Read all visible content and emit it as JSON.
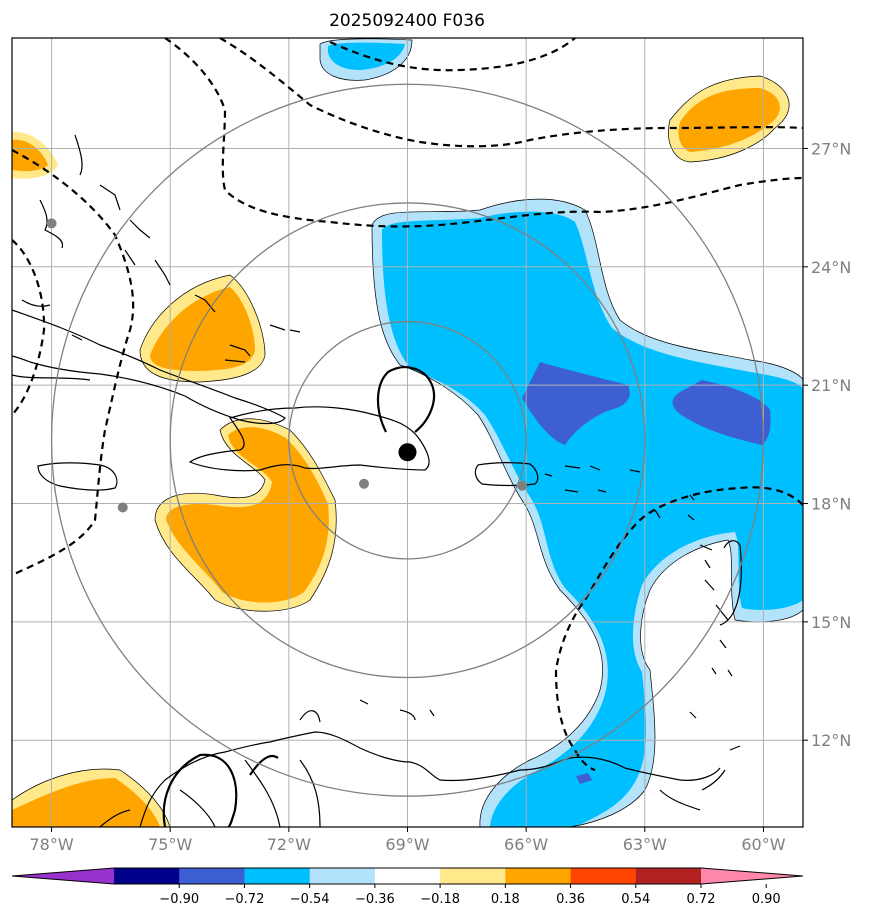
{
  "title": "2025092400 F036",
  "map": {
    "lon_range": [
      -79,
      -59
    ],
    "lat_range": [
      9.8,
      29.8
    ],
    "lon_ticks": [
      {
        "value": -78,
        "label": "78°W"
      },
      {
        "value": -75,
        "label": "75°W"
      },
      {
        "value": -72,
        "label": "72°W"
      },
      {
        "value": -69,
        "label": "69°W"
      },
      {
        "value": -66,
        "label": "66°W"
      },
      {
        "value": -63,
        "label": "63°W"
      },
      {
        "value": -60,
        "label": "60°W"
      }
    ],
    "lat_ticks": [
      {
        "value": 12,
        "label": "12°N"
      },
      {
        "value": 15,
        "label": "15°N"
      },
      {
        "value": 18,
        "label": "18°N"
      },
      {
        "value": 21,
        "label": "21°N"
      },
      {
        "value": 24,
        "label": "24°N"
      },
      {
        "value": 27,
        "label": "27°N"
      }
    ],
    "storm_center": {
      "lon": -69.0,
      "lat": 19.3
    },
    "range_rings": [
      3,
      6,
      9
    ],
    "city_markers": [
      {
        "lon": -78.0,
        "lat": 25.1
      },
      {
        "lon": -76.2,
        "lat": 17.9
      },
      {
        "lon": -70.1,
        "lat": 18.5
      },
      {
        "lon": -66.1,
        "lat": 18.45
      }
    ],
    "colors": {
      "gridline": "#b0b0b0",
      "ring": "#808080",
      "marker": "#808080",
      "coast": "#000000"
    }
  },
  "colorbar": {
    "levels": [
      -0.9,
      -0.72,
      -0.54,
      -0.36,
      -0.18,
      0.18,
      0.36,
      0.54,
      0.72,
      0.9
    ],
    "labels": [
      "−0.90",
      "−0.72",
      "−0.54",
      "−0.36",
      "−0.18",
      "0.18",
      "0.36",
      "0.54",
      "0.72",
      "0.90"
    ],
    "colors": [
      "#9932cc",
      "#00008b",
      "#3d5fd1",
      "#00bfff",
      "#b3e2fb",
      "#ffffff",
      "#ffe98a",
      "#ffa500",
      "#ff4500",
      "#b22222",
      "#ff88aa"
    ]
  }
}
